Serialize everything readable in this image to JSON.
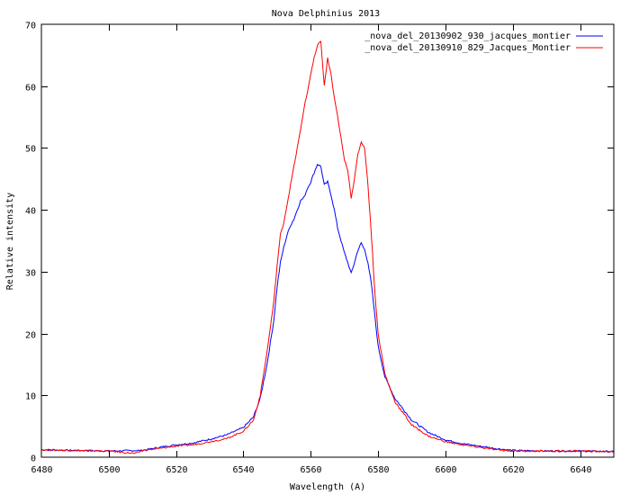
{
  "chart_data": {
    "type": "line",
    "title": "Nova Delphinius 2013",
    "xlabel": "Wavelength (A)",
    "ylabel": "Relative intensity",
    "xlim": [
      6480,
      6650
    ],
    "ylim": [
      0,
      70
    ],
    "xticks": [
      6480,
      6500,
      6520,
      6540,
      6560,
      6580,
      6600,
      6620,
      6640
    ],
    "yticks": [
      0,
      10,
      20,
      30,
      40,
      50,
      60,
      70
    ],
    "grid": false,
    "legend_position": "top-right",
    "series": [
      {
        "name": "_nova_del_20130902_930_jacques_montier",
        "color": "#0000ff",
        "x": [
          6480,
          6490,
          6500,
          6510,
          6515,
          6520,
          6525,
          6530,
          6535,
          6540,
          6543,
          6545,
          6547,
          6549,
          6550,
          6551,
          6552,
          6553,
          6554,
          6555,
          6556,
          6557,
          6558,
          6559,
          6560,
          6561,
          6562,
          6563,
          6564,
          6565,
          6566,
          6567,
          6568,
          6569,
          6570,
          6571,
          6572,
          6573,
          6574,
          6575,
          6576,
          6577,
          6578,
          6579,
          6580,
          6582,
          6585,
          6590,
          6595,
          6600,
          6605,
          6610,
          6615,
          6620,
          6630,
          6640,
          6650
        ],
        "y": [
          1.2,
          1.1,
          1.0,
          1.1,
          1.6,
          2.0,
          2.3,
          2.9,
          3.6,
          4.8,
          6.5,
          9.5,
          15.0,
          22.0,
          27.5,
          31.5,
          34.0,
          36.0,
          37.5,
          38.5,
          40.0,
          41.5,
          42.0,
          43.5,
          44.5,
          46.0,
          47.4,
          47.0,
          44.0,
          44.5,
          42.5,
          40.0,
          37.0,
          35.0,
          33.0,
          31.5,
          29.7,
          31.5,
          33.5,
          34.6,
          33.5,
          31.5,
          28.0,
          23.0,
          18.0,
          13.0,
          9.5,
          6.0,
          4.0,
          2.8,
          2.2,
          1.8,
          1.4,
          1.1,
          1.0,
          1.0,
          0.9
        ]
      },
      {
        "name": "_nova_del_20130910_829_Jacques_Montier",
        "color": "#ff0000",
        "x": [
          6480,
          6490,
          6500,
          6508,
          6510,
          6515,
          6520,
          6525,
          6530,
          6535,
          6540,
          6543,
          6545,
          6547,
          6549,
          6550,
          6551,
          6552,
          6553,
          6554,
          6555,
          6556,
          6557,
          6558,
          6559,
          6560,
          6561,
          6562,
          6563,
          6564,
          6565,
          6566,
          6567,
          6568,
          6569,
          6570,
          6571,
          6572,
          6573,
          6574,
          6575,
          6576,
          6577,
          6578,
          6579,
          6580,
          6582,
          6585,
          6590,
          6595,
          6600,
          6605,
          6610,
          6615,
          6620,
          6630,
          6640,
          6650
        ],
        "y": [
          1.2,
          1.1,
          1.0,
          0.6,
          1.1,
          1.4,
          1.8,
          2.0,
          2.5,
          3.0,
          4.2,
          6.0,
          10.0,
          17.0,
          25.0,
          31.0,
          36.0,
          38.0,
          41.0,
          44.0,
          47.0,
          50.0,
          53.0,
          56.5,
          59.0,
          62.0,
          64.5,
          66.5,
          67.3,
          60.0,
          64.5,
          62.0,
          58.0,
          55.0,
          51.5,
          48.0,
          46.5,
          42.0,
          45.0,
          49.0,
          51.0,
          50.0,
          44.0,
          36.0,
          27.0,
          20.0,
          13.5,
          9.0,
          5.2,
          3.4,
          2.5,
          2.0,
          1.6,
          1.2,
          1.0,
          1.0,
          1.0,
          0.9
        ]
      }
    ]
  }
}
